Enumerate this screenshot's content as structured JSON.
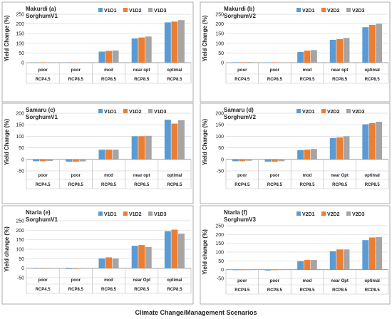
{
  "figure": {
    "xlabel": "Climate Change/Management Scenarios"
  },
  "colors": [
    "#5B9BD5",
    "#ED7D31",
    "#A5A5A5"
  ],
  "chart_data": [
    {
      "type": "bar",
      "title": "Makurdi (a)",
      "subtitle": "SorghumV1",
      "ylabel": "Yield Change (%)",
      "ylim": [
        0,
        250
      ],
      "yticks": [
        0,
        50,
        100,
        150,
        200,
        250
      ],
      "categories": [
        "poor",
        "poor",
        "mod",
        "near opt",
        "optimal"
      ],
      "scenarios": [
        "RCP4.5",
        "RCP8.5",
        "RCP8.5",
        "RCP8.5",
        "RCP8.5"
      ],
      "series": [
        {
          "name": "V1D1",
          "values": [
            1,
            1,
            57,
            125,
            208
          ]
        },
        {
          "name": "V1D2",
          "values": [
            2,
            1,
            61,
            130,
            212
          ]
        },
        {
          "name": "V1D3",
          "values": [
            2,
            1,
            63,
            135,
            220
          ]
        }
      ]
    },
    {
      "type": "bar",
      "title": "Makurdi (b)",
      "subtitle": "SorghumV2",
      "ylabel": "Yield Change (%)",
      "ylim": [
        0,
        250
      ],
      "yticks": [
        0,
        50,
        100,
        150,
        200,
        250
      ],
      "categories": [
        "poor",
        "poor",
        "mod",
        "near opt",
        "optimal"
      ],
      "scenarios": [
        "RCP4.5",
        "RCP8.5",
        "RCP8.5",
        "RCP8.5",
        "RCP8.5"
      ],
      "series": [
        {
          "name": "V2D1",
          "values": [
            2,
            1,
            55,
            118,
            183
          ]
        },
        {
          "name": "V2D2",
          "values": [
            2,
            2,
            62,
            122,
            195
          ]
        },
        {
          "name": "V2D3",
          "values": [
            3,
            2,
            65,
            128,
            202
          ]
        }
      ]
    },
    {
      "type": "bar",
      "title": "Samaru (c)",
      "subtitle": "SorghumV1",
      "ylabel": "Yield Change (%)",
      "ylim": [
        -50,
        200
      ],
      "yticks": [
        -50,
        0,
        50,
        100,
        150,
        200
      ],
      "categories": [
        "poor",
        "poor",
        "mod",
        "near opt",
        "optimal"
      ],
      "scenarios": [
        "RCP4.5",
        "RCP8.5",
        "RCP8.5",
        "RCP8.5",
        "RCP8.5"
      ],
      "series": [
        {
          "name": "V1D1",
          "values": [
            -8,
            -10,
            42,
            100,
            172
          ]
        },
        {
          "name": "V1D2",
          "values": [
            -8,
            -10,
            42,
            100,
            155
          ]
        },
        {
          "name": "V1D3",
          "values": [
            -7,
            -9,
            42,
            102,
            170
          ]
        }
      ]
    },
    {
      "type": "bar",
      "title": "Samaru (d)",
      "subtitle": "SorghumV2",
      "ylabel": "Yield Change (%)",
      "ylim": [
        -50,
        200
      ],
      "yticks": [
        -50,
        0,
        50,
        100,
        150,
        200
      ],
      "categories": [
        "poor",
        "poor",
        "mod",
        "near Opt",
        "optimal"
      ],
      "scenarios": [
        "RCP4.5",
        "RCP8.5",
        "RCP8.5",
        "RCP8.5",
        "RCP8.5"
      ],
      "series": [
        {
          "name": "V2D1",
          "values": [
            -8,
            -10,
            40,
            92,
            152
          ]
        },
        {
          "name": "V2D2",
          "values": [
            -8,
            -10,
            42,
            95,
            157
          ]
        },
        {
          "name": "V2D3",
          "values": [
            -6,
            -8,
            45,
            100,
            163
          ]
        }
      ]
    },
    {
      "type": "bar",
      "title": "Ntarla (e)",
      "subtitle": "SorghumV1",
      "ylabel": "Yield change (%)",
      "ylim": [
        -50,
        250
      ],
      "yticks": [
        -50,
        0,
        50,
        100,
        150,
        200,
        250
      ],
      "categories": [
        "poor",
        "poor",
        "mod",
        "near Opt",
        "optimal"
      ],
      "scenarios": [
        "RCP4.5",
        "RCP8.5",
        "RCP8.5",
        "RCP8.5",
        "RCP8.5"
      ],
      "series": [
        {
          "name": "V1D1",
          "values": [
            -2,
            -4,
            52,
            118,
            195
          ]
        },
        {
          "name": "V1D2",
          "values": [
            -2,
            -3,
            57,
            122,
            203
          ]
        },
        {
          "name": "V1D3",
          "values": [
            -1,
            -2,
            52,
            112,
            182
          ]
        }
      ]
    },
    {
      "type": "bar",
      "title": "Ntarla (f)",
      "subtitle": "SorghumV3",
      "ylabel": "Yield change (%)",
      "ylim": [
        -50,
        250
      ],
      "yticks": [
        -50,
        0,
        50,
        100,
        150,
        200,
        250
      ],
      "categories": [
        "poor",
        "poor",
        "mod",
        "near Opt",
        "optimal"
      ],
      "scenarios": [
        "RCP4.5",
        "RCP8.5",
        "RCP8.5",
        "RCP8.5",
        "RCP8.5"
      ],
      "series": [
        {
          "name": "V2D1",
          "values": [
            -3,
            -5,
            48,
            105,
            168
          ]
        },
        {
          "name": "V2D2",
          "values": [
            -2,
            -3,
            55,
            115,
            183
          ]
        },
        {
          "name": "V2D3",
          "values": [
            -1,
            -2,
            55,
            115,
            185
          ]
        }
      ]
    }
  ]
}
